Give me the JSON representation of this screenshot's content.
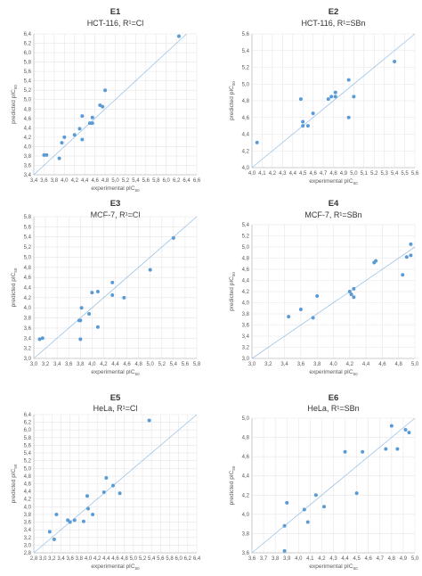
{
  "colors": {
    "point": "#5b9bd5",
    "diag": "#9dc3e6",
    "grid": "#e6e6e6",
    "axis": "#bfbfbf",
    "text": "#595959"
  },
  "chart_data": [
    {
      "type": "scatter",
      "id": "E1",
      "subtitle": "HCT-116, R¹=Cl",
      "xlabel": "experimental pIC",
      "xlabel_sub": "50",
      "ylabel": "predicted pIC",
      "ylabel_sub": "50",
      "xlim": [
        3.4,
        6.6
      ],
      "ylim": [
        3.4,
        6.4
      ],
      "xstep": 0.2,
      "ystep": 0.2,
      "xticks": [
        "3,4",
        "3,6",
        "3,8",
        "4,0",
        "4,2",
        "4,4",
        "4,6",
        "4,8",
        "5,0",
        "5,2",
        "5,4",
        "5,6",
        "5,8",
        "6,0",
        "6,2",
        "6,4",
        "6,6"
      ],
      "yticks": [
        "3,4",
        "3,6",
        "3,8",
        "4,0",
        "4,2",
        "4,4",
        "4,6",
        "4,8",
        "5,0",
        "5,2",
        "5,4",
        "5,6",
        "5,8",
        "6,0",
        "6,2",
        "6,4"
      ],
      "grid": true,
      "points": [
        [
          3.6,
          3.82
        ],
        [
          3.65,
          3.82
        ],
        [
          3.9,
          3.75
        ],
        [
          3.95,
          4.08
        ],
        [
          4.0,
          4.2
        ],
        [
          4.2,
          4.25
        ],
        [
          4.3,
          4.38
        ],
        [
          4.35,
          4.15
        ],
        [
          4.35,
          4.65
        ],
        [
          4.5,
          4.5
        ],
        [
          4.55,
          4.5
        ],
        [
          4.55,
          4.62
        ],
        [
          4.7,
          4.88
        ],
        [
          4.75,
          4.85
        ],
        [
          4.8,
          5.2
        ],
        [
          6.25,
          6.35
        ]
      ]
    },
    {
      "type": "scatter",
      "id": "E2",
      "subtitle": "HCT-116, R¹=SBn",
      "xlabel": "experimental pIC",
      "xlabel_sub": "50",
      "ylabel": "predicted pIC",
      "ylabel_sub": "50",
      "xlim": [
        4.0,
        5.6
      ],
      "ylim": [
        4.0,
        5.6
      ],
      "xstep": 0.1,
      "ystep": 0.2,
      "xticks": [
        "4,0",
        "4,1",
        "4,2",
        "4,3",
        "4,4",
        "4,5",
        "4,6",
        "4,7",
        "4,8",
        "4,9",
        "5,0",
        "5,1",
        "5,2",
        "5,3",
        "5,4",
        "5,5",
        "5,6"
      ],
      "yticks": [
        "4,0",
        "4,2",
        "4,4",
        "4,6",
        "4,8",
        "5,0",
        "5,2",
        "5,4",
        "5,6"
      ],
      "grid": true,
      "points": [
        [
          4.05,
          4.3
        ],
        [
          4.48,
          4.82
        ],
        [
          4.5,
          4.5
        ],
        [
          4.5,
          4.55
        ],
        [
          4.55,
          4.5
        ],
        [
          4.6,
          4.65
        ],
        [
          4.75,
          4.82
        ],
        [
          4.78,
          4.85
        ],
        [
          4.82,
          4.85
        ],
        [
          4.82,
          4.9
        ],
        [
          4.95,
          5.05
        ],
        [
          4.95,
          4.6
        ],
        [
          5.0,
          4.85
        ],
        [
          5.4,
          5.27
        ]
      ]
    },
    {
      "type": "scatter",
      "id": "E3",
      "subtitle": "MCF-7, R¹=Cl",
      "xlabel": "experimental pIC",
      "xlabel_sub": "50",
      "ylabel": "predicted pIC",
      "ylabel_sub": "50",
      "xlim": [
        3.0,
        5.8
      ],
      "ylim": [
        3.0,
        5.8
      ],
      "xstep": 0.2,
      "ystep": 0.2,
      "xticks": [
        "3,0",
        "3,2",
        "3,4",
        "3,6",
        "3,8",
        "4,0",
        "4,2",
        "4,4",
        "4,6",
        "4,8",
        "5,0",
        "5,2",
        "5,4",
        "5,6",
        "5,8"
      ],
      "yticks": [
        "3,0",
        "3,2",
        "3,4",
        "3,6",
        "3,8",
        "4,0",
        "4,2",
        "4,4",
        "4,6",
        "4,8",
        "5,0",
        "5,2",
        "5,4",
        "5,6",
        "5,8"
      ],
      "grid": true,
      "points": [
        [
          3.1,
          3.38
        ],
        [
          3.15,
          3.4
        ],
        [
          3.78,
          3.75
        ],
        [
          3.8,
          3.38
        ],
        [
          3.8,
          3.75
        ],
        [
          3.82,
          4.0
        ],
        [
          3.95,
          3.88
        ],
        [
          4.0,
          4.3
        ],
        [
          4.1,
          3.62
        ],
        [
          4.1,
          4.32
        ],
        [
          4.35,
          4.25
        ],
        [
          4.35,
          4.5
        ],
        [
          4.55,
          4.2
        ],
        [
          5.0,
          4.75
        ],
        [
          5.4,
          5.38
        ]
      ]
    },
    {
      "type": "scatter",
      "id": "E4",
      "subtitle": "MCF-7, R¹=SBn",
      "xlabel": "experimental pIC",
      "xlabel_sub": "50",
      "ylabel": "predicted pIC",
      "ylabel_sub": "50",
      "xlim": [
        3.0,
        5.0
      ],
      "ylim": [
        3.0,
        5.4
      ],
      "xstep": 0.2,
      "ystep": 0.2,
      "xticks": [
        "3,0",
        "3,2",
        "3,4",
        "3,6",
        "3,8",
        "4,0",
        "4,2",
        "4,4",
        "4,6",
        "4,8",
        "5,0"
      ],
      "yticks": [
        "3,0",
        "3,2",
        "3,4",
        "3,6",
        "3,8",
        "4,0",
        "4,2",
        "4,4",
        "4,6",
        "4,8",
        "5,0",
        "5,2",
        "5,4"
      ],
      "grid": true,
      "points": [
        [
          3.45,
          3.75
        ],
        [
          3.6,
          3.88
        ],
        [
          3.75,
          3.73
        ],
        [
          3.8,
          4.12
        ],
        [
          4.2,
          4.2
        ],
        [
          4.22,
          4.15
        ],
        [
          4.25,
          4.1
        ],
        [
          4.25,
          4.25
        ],
        [
          4.5,
          4.72
        ],
        [
          4.52,
          4.75
        ],
        [
          4.85,
          4.5
        ],
        [
          4.9,
          4.82
        ],
        [
          4.95,
          4.85
        ],
        [
          4.95,
          5.05
        ]
      ]
    },
    {
      "type": "scatter",
      "id": "E5",
      "subtitle": "HeLa, R¹=Cl",
      "xlabel": "experimental pIC",
      "xlabel_sub": "50",
      "ylabel": "predicted pIC",
      "ylabel_sub": "50",
      "xlim": [
        2.8,
        6.4
      ],
      "ylim": [
        2.8,
        6.4
      ],
      "xstep": 0.2,
      "ystep": 0.2,
      "xticks": [
        "2,8",
        "3,0",
        "3,2",
        "3,4",
        "3,6",
        "3,8",
        "4,0",
        "4,2",
        "4,4",
        "4,6",
        "4,8",
        "5,0",
        "5,2",
        "5,4",
        "5,6",
        "5,8",
        "6,0",
        "6,2",
        "6,4"
      ],
      "yticks": [
        "2,8",
        "3,0",
        "3,2",
        "3,4",
        "3,6",
        "3,8",
        "4,0",
        "4,2",
        "4,4",
        "4,6",
        "4,8",
        "5,0",
        "5,2",
        "5,4",
        "5,6",
        "5,8",
        "6,0",
        "6,2",
        "6,4"
      ],
      "grid": true,
      "points": [
        [
          3.15,
          3.35
        ],
        [
          3.25,
          3.15
        ],
        [
          3.3,
          3.8
        ],
        [
          3.55,
          3.65
        ],
        [
          3.6,
          3.6
        ],
        [
          3.7,
          3.65
        ],
        [
          3.9,
          3.62
        ],
        [
          3.98,
          4.28
        ],
        [
          4.0,
          3.95
        ],
        [
          4.1,
          3.8
        ],
        [
          4.35,
          4.38
        ],
        [
          4.4,
          4.75
        ],
        [
          4.55,
          4.55
        ],
        [
          4.7,
          4.35
        ],
        [
          5.35,
          6.25
        ]
      ]
    },
    {
      "type": "scatter",
      "id": "E6",
      "subtitle": "HeLa, R¹=SBn",
      "xlabel": "experimental pIC",
      "xlabel_sub": "50",
      "ylabel": "predicted pIC",
      "ylabel_sub": "50",
      "xlim": [
        3.6,
        5.0
      ],
      "ylim": [
        3.6,
        5.0
      ],
      "xstep": 0.1,
      "ystep": 0.2,
      "xticks": [
        "3,6",
        "3,7",
        "3,8",
        "3,9",
        "4,0",
        "4,1",
        "4,2",
        "4,3",
        "4,4",
        "4,5",
        "4,6",
        "4,7",
        "4,8",
        "4,9",
        "5,0"
      ],
      "yticks": [
        "3,6",
        "3,8",
        "4,0",
        "4,2",
        "4,4",
        "4,6",
        "4,8",
        "5,0"
      ],
      "grid": true,
      "points": [
        [
          3.88,
          3.88
        ],
        [
          3.88,
          3.62
        ],
        [
          3.9,
          4.12
        ],
        [
          4.05,
          4.05
        ],
        [
          4.08,
          3.92
        ],
        [
          4.15,
          4.2
        ],
        [
          4.22,
          4.08
        ],
        [
          4.4,
          4.65
        ],
        [
          4.5,
          4.22
        ],
        [
          4.55,
          4.65
        ],
        [
          4.75,
          4.68
        ],
        [
          4.8,
          4.92
        ],
        [
          4.85,
          4.68
        ],
        [
          4.92,
          4.88
        ],
        [
          4.95,
          4.85
        ]
      ]
    }
  ]
}
